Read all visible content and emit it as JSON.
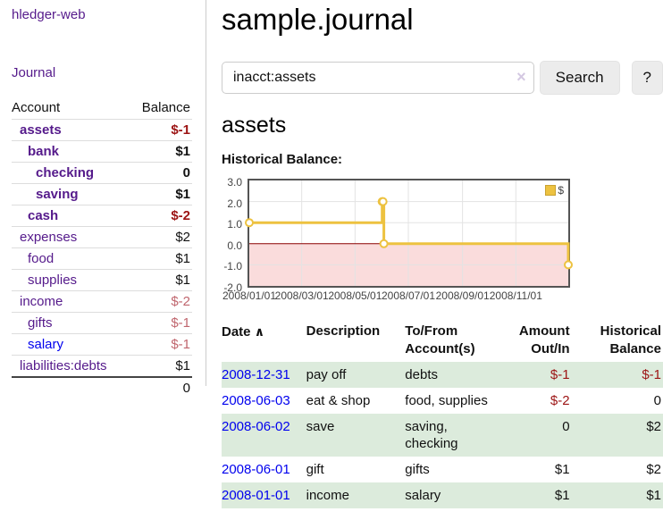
{
  "colors": {
    "purple_link": "#551a8b",
    "blue_link": "#0000ee",
    "negative": "#9c1414",
    "negative_muted": "#c0666e",
    "row_stripe": "#dcebdc",
    "row_border": "#ddd",
    "sidebar_border": "#ccc",
    "button_bg": "#ececec",
    "input_border": "#ccc",
    "clear_icon": "#d4c8e2",
    "chart_line": "#edc240",
    "plot_border": "#545454",
    "tick_text": "#444"
  },
  "sidebar": {
    "app_title": "hledger-web",
    "journal_link": "Journal",
    "table": {
      "account_header": "Account",
      "balance_header": "Balance",
      "rows": [
        {
          "label": "assets",
          "balance": "$-1"
        },
        {
          "label": "bank",
          "balance": "$1"
        },
        {
          "label": "checking",
          "balance": "0"
        },
        {
          "label": "saving",
          "balance": "$1"
        },
        {
          "label": "cash",
          "balance": "$-2"
        },
        {
          "label": "expenses",
          "balance": "$2"
        },
        {
          "label": "food",
          "balance": "$1"
        },
        {
          "label": "supplies",
          "balance": "$1"
        },
        {
          "label": "income",
          "balance": "$-2"
        },
        {
          "label": "gifts",
          "balance": "$-1"
        },
        {
          "label": "salary",
          "balance": "$-1"
        },
        {
          "label": "liabilities:debts",
          "balance": "$1"
        }
      ],
      "total": "0"
    }
  },
  "main": {
    "title": "sample.journal",
    "search": {
      "value": "inacct:assets",
      "clear_icon": "×",
      "search_button": "Search",
      "help_button": "?"
    },
    "account_heading": "assets",
    "chart_heading": "Historical Balance:"
  },
  "chart_data": {
    "type": "line",
    "style": "step-after",
    "title": "Historical Balance:",
    "xlim": [
      "2008-01-01",
      "2008-12-31"
    ],
    "ylim": [
      -2,
      3
    ],
    "grid": true,
    "legend": {
      "label": "$",
      "position": "top-right"
    },
    "series": [
      {
        "name": "$",
        "color": "#edc240",
        "points": [
          [
            "2008-01-01",
            1
          ],
          [
            "2008-06-01",
            2
          ],
          [
            "2008-06-02",
            2
          ],
          [
            "2008-06-03",
            0
          ],
          [
            "2008-12-31",
            -1
          ]
        ]
      }
    ],
    "y_ticks": [
      {
        "label": "3.0",
        "value": 3
      },
      {
        "label": "2.0",
        "value": 2
      },
      {
        "label": "1.0",
        "value": 1
      },
      {
        "label": "0.0",
        "value": 0
      },
      {
        "label": "-1.0",
        "value": -1
      },
      {
        "label": "-2.0",
        "value": -2
      }
    ],
    "y_gridlines": [
      2,
      1,
      -1
    ],
    "x_ticks": [
      {
        "label": "2008/01/01",
        "date": "2008-01-01"
      },
      {
        "label": "2008/03/01",
        "date": "2008-03-01"
      },
      {
        "label": "2008/05/01",
        "date": "2008-05-01"
      },
      {
        "label": "2008/07/01",
        "date": "2008-07-01"
      },
      {
        "label": "2008/09/01",
        "date": "2008-09-01"
      },
      {
        "label": "2008/11/01",
        "date": "2008-11-01"
      }
    ],
    "negative_region_color": "#fadcdc",
    "zero_line_color": "#8b0000",
    "gridline_color": "#e3e3e3"
  },
  "transactions": {
    "headers": {
      "date": "Date",
      "sort_indicator": "∧",
      "description": "Description",
      "accounts": "To/From Account(s)",
      "amount": "Amount Out/In",
      "balance": "Historical Balance"
    },
    "rows": [
      {
        "date": "2008-12-31",
        "description": "pay off",
        "accounts": "debts",
        "amount": "$-1",
        "balance": "$-1"
      },
      {
        "date": "2008-06-03",
        "description": "eat & shop",
        "accounts": "food, supplies",
        "amount": "$-2",
        "balance": "0"
      },
      {
        "date": "2008-06-02",
        "description": "save",
        "accounts": "saving, checking",
        "amount": "0",
        "balance": "$2"
      },
      {
        "date": "2008-06-01",
        "description": "gift",
        "accounts": "gifts",
        "amount": "$1",
        "balance": "$2"
      },
      {
        "date": "2008-01-01",
        "description": "income",
        "accounts": "salary",
        "amount": "$1",
        "balance": "$1"
      }
    ]
  }
}
